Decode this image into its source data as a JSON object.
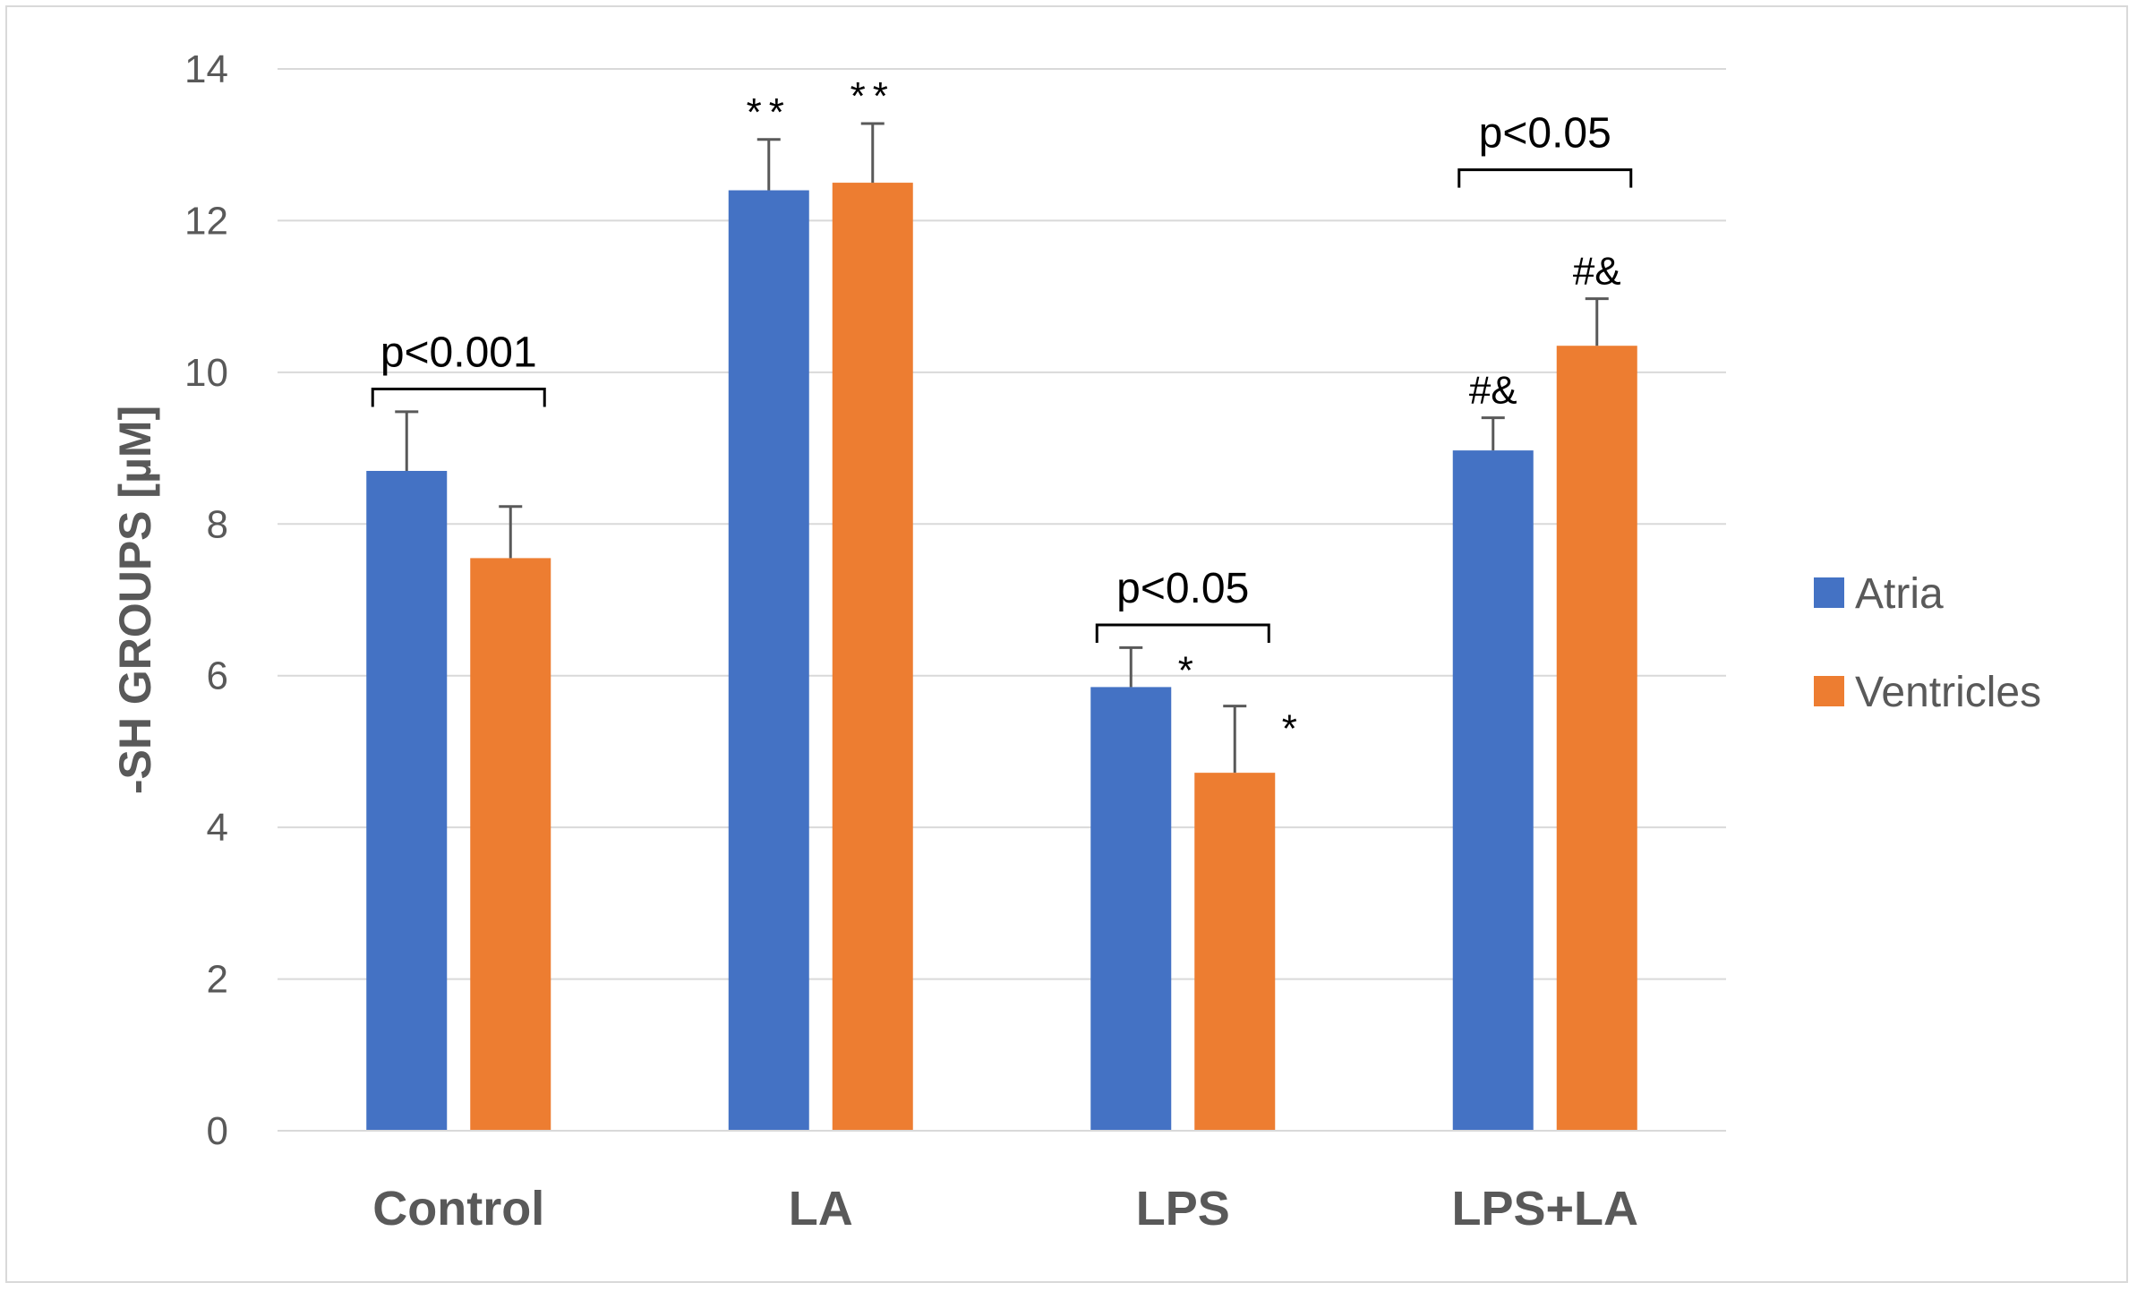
{
  "chart_data": {
    "type": "bar",
    "ylabel": "-SH GROUPS [µM]",
    "xlabel": "",
    "ylim": [
      0,
      14
    ],
    "yticks": [
      0,
      2,
      4,
      6,
      8,
      10,
      12,
      14
    ],
    "grid": true,
    "legend_position": "right",
    "categories": [
      "Control",
      "LA",
      "LPS",
      "LPS+LA"
    ],
    "series": [
      {
        "name": "Atria",
        "color": "#4472c4",
        "values": [
          8.7,
          12.4,
          5.85,
          8.97
        ],
        "errors": [
          0.78,
          0.67,
          0.52,
          0.43
        ],
        "annotations": [
          "",
          "**",
          "*",
          "#&"
        ]
      },
      {
        "name": "Ventricles",
        "color": "#ed7d31",
        "values": [
          7.55,
          12.5,
          4.72,
          10.35
        ],
        "errors": [
          0.68,
          0.78,
          0.88,
          0.62
        ],
        "annotations": [
          "",
          "**",
          "*",
          "#&"
        ]
      }
    ],
    "significance_brackets": [
      {
        "category": "Control",
        "label": "p<0.001"
      },
      {
        "category": "LPS",
        "label": "p<0.05"
      },
      {
        "category": "LPS+LA",
        "label": "p<0.05"
      }
    ]
  }
}
